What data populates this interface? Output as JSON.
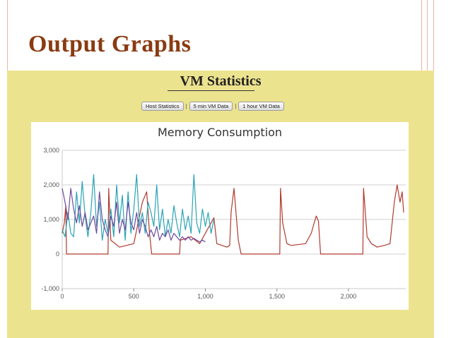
{
  "slide": {
    "title": "Output Graphs"
  },
  "panel": {
    "heading": "VM Statistics",
    "buttons": [
      "Host Statistics",
      "5 min VM Data",
      "1 hour VM Data"
    ],
    "separator": "|"
  },
  "chart_data": {
    "type": "line",
    "title": "Memory Consumption",
    "xlabel": "",
    "ylabel": "",
    "xlim": [
      0,
      2400
    ],
    "ylim": [
      -1000,
      3000
    ],
    "x_ticks": [
      0,
      500,
      1000,
      1500,
      2000
    ],
    "x_tick_labels": [
      "0",
      "500",
      "1,000",
      "1,500",
      "2,000"
    ],
    "y_ticks": [
      -1000,
      0,
      1000,
      2000,
      3000
    ],
    "y_tick_labels": [
      "-1,000",
      "0",
      "1,000",
      "2,000",
      "3,000"
    ],
    "grid": true,
    "legend": "none",
    "series": [
      {
        "color": "#b03a2e",
        "points": [
          [
            0,
            600
          ],
          [
            15,
            900
          ],
          [
            25,
            1400
          ],
          [
            30,
            0
          ],
          [
            320,
            0
          ],
          [
            325,
            1900
          ],
          [
            340,
            400
          ],
          [
            400,
            200
          ],
          [
            500,
            300
          ],
          [
            560,
            1500
          ],
          [
            590,
            1800
          ],
          [
            610,
            600
          ],
          [
            625,
            0
          ],
          [
            820,
            0
          ],
          [
            825,
            400
          ],
          [
            900,
            500
          ],
          [
            960,
            300
          ],
          [
            1060,
            1050
          ],
          [
            1080,
            300
          ],
          [
            1150,
            200
          ],
          [
            1170,
            250
          ],
          [
            1180,
            1200
          ],
          [
            1200,
            1900
          ],
          [
            1230,
            400
          ],
          [
            1250,
            0
          ],
          [
            1520,
            0
          ],
          [
            1525,
            1900
          ],
          [
            1540,
            900
          ],
          [
            1570,
            300
          ],
          [
            1600,
            250
          ],
          [
            1700,
            300
          ],
          [
            1740,
            600
          ],
          [
            1760,
            900
          ],
          [
            1775,
            1100
          ],
          [
            1790,
            950
          ],
          [
            1805,
            0
          ],
          [
            2100,
            0
          ],
          [
            2105,
            1900
          ],
          [
            2130,
            500
          ],
          [
            2160,
            300
          ],
          [
            2200,
            200
          ],
          [
            2250,
            250
          ],
          [
            2290,
            300
          ],
          [
            2320,
            1500
          ],
          [
            2340,
            2000
          ],
          [
            2360,
            1500
          ],
          [
            2375,
            1800
          ],
          [
            2385,
            1200
          ]
        ]
      },
      {
        "color": "#2aa3b5",
        "points": [
          [
            0,
            700
          ],
          [
            20,
            500
          ],
          [
            40,
            1200
          ],
          [
            60,
            600
          ],
          [
            80,
            500
          ],
          [
            100,
            1800
          ],
          [
            120,
            900
          ],
          [
            140,
            2100
          ],
          [
            160,
            1100
          ],
          [
            180,
            500
          ],
          [
            200,
            1200
          ],
          [
            220,
            2300
          ],
          [
            240,
            800
          ],
          [
            260,
            1500
          ],
          [
            280,
            400
          ],
          [
            300,
            1000
          ],
          [
            320,
            600
          ],
          [
            340,
            1300
          ],
          [
            360,
            500
          ],
          [
            380,
            2000
          ],
          [
            400,
            900
          ],
          [
            420,
            1700
          ],
          [
            440,
            400
          ],
          [
            460,
            1800
          ],
          [
            480,
            600
          ],
          [
            500,
            1300
          ],
          [
            520,
            2300
          ],
          [
            540,
            800
          ],
          [
            560,
            1200
          ],
          [
            580,
            600
          ],
          [
            600,
            1500
          ],
          [
            620,
            1200
          ],
          [
            640,
            800
          ],
          [
            660,
            2000
          ],
          [
            680,
            700
          ],
          [
            700,
            1300
          ],
          [
            720,
            500
          ],
          [
            740,
            1000
          ],
          [
            760,
            600
          ],
          [
            780,
            1400
          ],
          [
            800,
            900
          ],
          [
            820,
            500
          ],
          [
            840,
            1300
          ],
          [
            860,
            700
          ],
          [
            880,
            1100
          ],
          [
            900,
            600
          ],
          [
            920,
            2300
          ],
          [
            940,
            900
          ],
          [
            960,
            600
          ],
          [
            980,
            1300
          ],
          [
            1000,
            800
          ],
          [
            1020,
            1200
          ],
          [
            1040,
            600
          ],
          [
            1060,
            1000
          ]
        ]
      },
      {
        "color": "#6b4a9c",
        "points": [
          [
            0,
            1900
          ],
          [
            20,
            1500
          ],
          [
            40,
            1000
          ],
          [
            60,
            1900
          ],
          [
            80,
            1300
          ],
          [
            100,
            900
          ],
          [
            120,
            1400
          ],
          [
            140,
            800
          ],
          [
            160,
            1200
          ],
          [
            180,
            700
          ],
          [
            200,
            900
          ],
          [
            220,
            1100
          ],
          [
            240,
            600
          ],
          [
            260,
            1800
          ],
          [
            280,
            1000
          ],
          [
            300,
            700
          ],
          [
            320,
            500
          ],
          [
            340,
            1100
          ],
          [
            360,
            800
          ],
          [
            380,
            1500
          ],
          [
            400,
            600
          ],
          [
            420,
            1000
          ],
          [
            440,
            700
          ],
          [
            460,
            1500
          ],
          [
            480,
            900
          ],
          [
            500,
            700
          ],
          [
            520,
            1200
          ],
          [
            540,
            600
          ],
          [
            560,
            1000
          ],
          [
            580,
            800
          ],
          [
            600,
            500
          ],
          [
            620,
            700
          ],
          [
            640,
            500
          ],
          [
            660,
            800
          ],
          [
            680,
            400
          ],
          [
            700,
            600
          ],
          [
            720,
            500
          ],
          [
            740,
            700
          ],
          [
            760,
            400
          ],
          [
            780,
            600
          ],
          [
            800,
            500
          ],
          [
            820,
            400
          ],
          [
            840,
            500
          ],
          [
            860,
            400
          ],
          [
            880,
            500
          ],
          [
            900,
            400
          ],
          [
            920,
            450
          ],
          [
            940,
            400
          ],
          [
            960,
            350
          ],
          [
            980,
            400
          ],
          [
            1000,
            350
          ]
        ]
      }
    ]
  }
}
